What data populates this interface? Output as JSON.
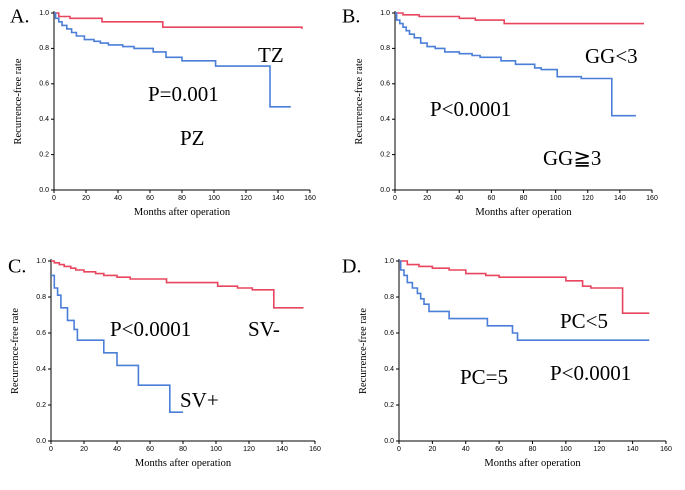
{
  "colors": {
    "red": "#e8465e",
    "blue": "#4a7ed8",
    "axis": "#000000"
  },
  "chart_data": [
    {
      "type": "line",
      "step": true,
      "panel_label": "A.",
      "title": "",
      "xlabel": "Months after operation",
      "ylabel": "Recurrence-free rate",
      "xlim": [
        0,
        160
      ],
      "ylim": [
        0,
        1.0
      ],
      "x_ticks": [
        0,
        20,
        40,
        60,
        80,
        100,
        120,
        140,
        160
      ],
      "y_ticks": [
        0.0,
        0.2,
        0.4,
        0.6,
        0.8,
        1.0
      ],
      "series": [
        {
          "name": "TZ",
          "color": "red",
          "points": [
            [
              0,
              1.0
            ],
            [
              3,
              0.98
            ],
            [
              10,
              0.97
            ],
            [
              30,
              0.95
            ],
            [
              68,
              0.92
            ],
            [
              155,
              0.91
            ]
          ]
        },
        {
          "name": "PZ",
          "color": "blue",
          "points": [
            [
              0,
              1.0
            ],
            [
              1,
              0.97
            ],
            [
              3,
              0.95
            ],
            [
              5,
              0.93
            ],
            [
              8,
              0.91
            ],
            [
              11,
              0.89
            ],
            [
              14,
              0.87
            ],
            [
              19,
              0.85
            ],
            [
              25,
              0.84
            ],
            [
              29,
              0.83
            ],
            [
              34,
              0.82
            ],
            [
              43,
              0.81
            ],
            [
              50,
              0.8
            ],
            [
              62,
              0.78
            ],
            [
              70,
              0.75
            ],
            [
              80,
              0.73
            ],
            [
              101,
              0.7
            ],
            [
              135,
              0.47
            ],
            [
              148,
              0.47
            ]
          ]
        }
      ],
      "annotations": [
        "TZ",
        "P=0.001",
        "PZ"
      ]
    },
    {
      "type": "line",
      "step": true,
      "panel_label": "B.",
      "title": "",
      "xlabel": "Months after operation",
      "ylabel": "Recurrence-free rate",
      "xlim": [
        0,
        160
      ],
      "ylim": [
        0,
        1.0
      ],
      "x_ticks": [
        0,
        20,
        40,
        60,
        80,
        100,
        120,
        140,
        160
      ],
      "y_ticks": [
        0.0,
        0.2,
        0.4,
        0.6,
        0.8,
        1.0
      ],
      "series": [
        {
          "name": "GG<3",
          "color": "red",
          "points": [
            [
              0,
              1.0
            ],
            [
              5,
              0.99
            ],
            [
              15,
              0.98
            ],
            [
              40,
              0.97
            ],
            [
              50,
              0.96
            ],
            [
              68,
              0.94
            ],
            [
              155,
              0.94
            ]
          ]
        },
        {
          "name": "GG≧3",
          "color": "blue",
          "points": [
            [
              0,
              1.0
            ],
            [
              1,
              0.96
            ],
            [
              3,
              0.94
            ],
            [
              5,
              0.92
            ],
            [
              7,
              0.9
            ],
            [
              9,
              0.88
            ],
            [
              12,
              0.86
            ],
            [
              16,
              0.83
            ],
            [
              20,
              0.81
            ],
            [
              25,
              0.8
            ],
            [
              31,
              0.78
            ],
            [
              40,
              0.77
            ],
            [
              48,
              0.76
            ],
            [
              53,
              0.75
            ],
            [
              66,
              0.73
            ],
            [
              75,
              0.71
            ],
            [
              87,
              0.69
            ],
            [
              91,
              0.68
            ],
            [
              101,
              0.64
            ],
            [
              116,
              0.63
            ],
            [
              135,
              0.42
            ],
            [
              150,
              0.42
            ]
          ]
        }
      ],
      "annotations": [
        "GG<3",
        "P<0.0001",
        "GG≧3"
      ]
    },
    {
      "type": "line",
      "step": true,
      "panel_label": "C.",
      "title": "",
      "xlabel": "Months after operation",
      "ylabel": "Recurrence-free rate",
      "xlim": [
        0,
        160
      ],
      "ylim": [
        0,
        1.0
      ],
      "x_ticks": [
        0,
        20,
        40,
        60,
        80,
        100,
        120,
        140,
        160
      ],
      "y_ticks": [
        0.0,
        0.2,
        0.4,
        0.6,
        0.8,
        1.0
      ],
      "series": [
        {
          "name": "SV-",
          "color": "red",
          "points": [
            [
              0,
              1.0
            ],
            [
              2,
              0.99
            ],
            [
              5,
              0.98
            ],
            [
              8,
              0.97
            ],
            [
              12,
              0.96
            ],
            [
              15,
              0.95
            ],
            [
              20,
              0.94
            ],
            [
              27,
              0.93
            ],
            [
              32,
              0.92
            ],
            [
              40,
              0.91
            ],
            [
              48,
              0.9
            ],
            [
              70,
              0.88
            ],
            [
              101,
              0.86
            ],
            [
              113,
              0.85
            ],
            [
              122,
              0.84
            ],
            [
              135,
              0.74
            ],
            [
              153,
              0.74
            ]
          ]
        },
        {
          "name": "SV+",
          "color": "blue",
          "points": [
            [
              0,
              0.92
            ],
            [
              2,
              0.85
            ],
            [
              4,
              0.81
            ],
            [
              6,
              0.74
            ],
            [
              10,
              0.67
            ],
            [
              14,
              0.62
            ],
            [
              16,
              0.56
            ],
            [
              32,
              0.49
            ],
            [
              40,
              0.42
            ],
            [
              53,
              0.31
            ],
            [
              72,
              0.16
            ],
            [
              80,
              0.16
            ]
          ]
        }
      ],
      "annotations": [
        "P<0.0001",
        "SV-",
        "SV+"
      ]
    },
    {
      "type": "line",
      "step": true,
      "panel_label": "D.",
      "title": "",
      "xlabel": "Months after operation",
      "ylabel": "Recurrence-free rate",
      "xlim": [
        0,
        160
      ],
      "ylim": [
        0,
        1.0
      ],
      "x_ticks": [
        0,
        20,
        40,
        60,
        80,
        100,
        120,
        140,
        160
      ],
      "y_ticks": [
        0.0,
        0.2,
        0.4,
        0.6,
        0.8,
        1.0
      ],
      "series": [
        {
          "name": "PC<5",
          "color": "red",
          "points": [
            [
              0,
              1.0
            ],
            [
              5,
              0.98
            ],
            [
              12,
              0.97
            ],
            [
              20,
              0.96
            ],
            [
              30,
              0.95
            ],
            [
              40,
              0.93
            ],
            [
              52,
              0.92
            ],
            [
              60,
              0.91
            ],
            [
              100,
              0.89
            ],
            [
              110,
              0.86
            ],
            [
              115,
              0.85
            ],
            [
              134,
              0.71
            ],
            [
              150,
              0.71
            ]
          ]
        },
        {
          "name": "PC=5",
          "color": "blue",
          "points": [
            [
              0,
              1.0
            ],
            [
              1,
              0.95
            ],
            [
              3,
              0.92
            ],
            [
              5,
              0.88
            ],
            [
              8,
              0.85
            ],
            [
              11,
              0.82
            ],
            [
              13,
              0.79
            ],
            [
              15,
              0.76
            ],
            [
              18,
              0.72
            ],
            [
              30,
              0.68
            ],
            [
              53,
              0.64
            ],
            [
              68,
              0.6
            ],
            [
              71,
              0.56
            ],
            [
              150,
              0.56
            ]
          ]
        }
      ],
      "annotations": [
        "PC<5",
        "PC=5",
        "P<0.0001"
      ]
    }
  ]
}
